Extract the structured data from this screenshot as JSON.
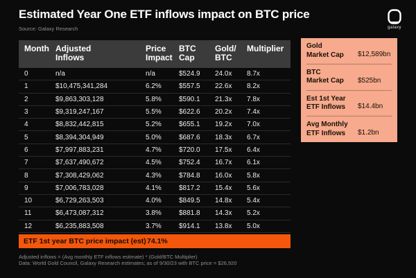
{
  "page": {
    "title": "Estimated Year One ETF inflows impact on BTC price",
    "source": "Source: Galaxy Research",
    "brand": "galaxy"
  },
  "table": {
    "columns": [
      "Month",
      "Adjusted\nInflows",
      "Price\nImpact",
      "BTC\nCap",
      "Gold/\nBTC",
      "Multiplier"
    ],
    "footer_label": "ETF 1st year BTC price impact (est)",
    "footer_value": "74.1%"
  },
  "sidebar": {
    "items": [
      {
        "label": "Gold\nMarket Cap",
        "value": "$12,589bn"
      },
      {
        "label": "BTC\nMarket Cap",
        "value": "$525bn"
      },
      {
        "label": "Est 1st Year\nETF Inflows",
        "value": "$14.4bn"
      },
      {
        "label": "Avg Monthly\nETF Inflows",
        "value": "$1.2bn"
      }
    ]
  },
  "footnotes": [
    "Adjusted inflows = (Avg monthly ETF inflows estimate) * (Gold/BTC Multiplier)",
    "Data: World Gold Council, Galaxy Research estimates; as of 9/30/23 with BTC price = $26,920"
  ],
  "colors": {
    "background": "#0B0B0B",
    "header_gray": "#3B3B3B",
    "accent_orange": "#F4570B",
    "panel_salmon": "#F7AA8D",
    "row_divider": "#2A2A2A",
    "text_white": "#EDEDED",
    "text_gray": "#8F8F8F"
  },
  "chart_data": {
    "type": "table",
    "title": "Estimated Year One ETF inflows impact on BTC price",
    "source": "Galaxy Research",
    "columns": [
      "Month",
      "Adjusted Inflows",
      "Price Impact",
      "BTC Cap",
      "Gold/BTC",
      "Multiplier"
    ],
    "rows": [
      [
        "0",
        "n/a",
        "n/a",
        "$524.9",
        "24.0x",
        "8.7x"
      ],
      [
        "1",
        "$10,475,341,284",
        "6.2%",
        "$557.5",
        "22.6x",
        "8.2x"
      ],
      [
        "2",
        "$9,863,303,128",
        "5.8%",
        "$590.1",
        "21.3x",
        "7.8x"
      ],
      [
        "3",
        "$9,319,247,167",
        "5.5%",
        "$622.6",
        "20.2x",
        "7.4x"
      ],
      [
        "4",
        "$8,832,442,815",
        "5.2%",
        "$655.1",
        "19.2x",
        "7.0x"
      ],
      [
        "5",
        "$8,394,304,949",
        "5.0%",
        "$687.6",
        "18.3x",
        "6.7x"
      ],
      [
        "6",
        "$7,997,883,231",
        "4.7%",
        "$720.0",
        "17.5x",
        "6.4x"
      ],
      [
        "7",
        "$7,637,490,672",
        "4.5%",
        "$752.4",
        "16.7x",
        "6.1x"
      ],
      [
        "8",
        "$7,308,429,062",
        "4.3%",
        "$784.8",
        "16.0x",
        "5.8x"
      ],
      [
        "9",
        "$7,006,783,028",
        "4.1%",
        "$817.2",
        "15.4x",
        "5.6x"
      ],
      [
        "10",
        "$6,729,263,503",
        "4.0%",
        "$849.5",
        "14.8x",
        "5.4x"
      ],
      [
        "11",
        "$6,473,087,312",
        "3.8%",
        "$881.8",
        "14.3x",
        "5.2x"
      ],
      [
        "12",
        "$6,235,883,508",
        "3.7%",
        "$914.1",
        "13.8x",
        "5.0x"
      ]
    ],
    "summary": {
      "label": "ETF 1st year BTC price impact (est)",
      "value": "74.1%"
    },
    "side_stats": [
      {
        "label": "Gold Market Cap",
        "value": "$12,589bn"
      },
      {
        "label": "BTC Market Cap",
        "value": "$525bn"
      },
      {
        "label": "Est 1st Year ETF Inflows",
        "value": "$14.4bn"
      },
      {
        "label": "Avg Monthly ETF Inflows",
        "value": "$1.2bn"
      }
    ]
  }
}
